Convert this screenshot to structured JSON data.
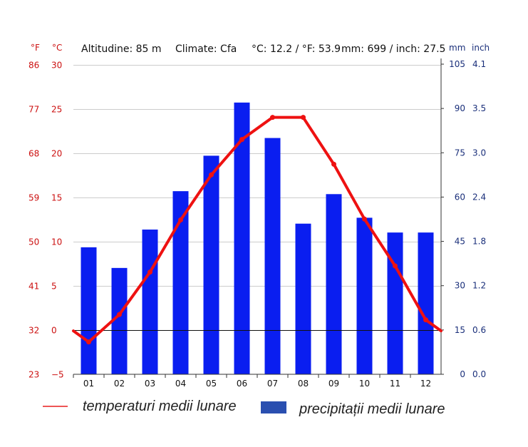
{
  "header": {
    "unit_f": "°F",
    "unit_c": "°C",
    "altitude": "Altitudine: 85 m",
    "climate": "Climate: Cfa",
    "temp_avg": "°C: 12.2 / °F: 53.9",
    "precip_total": "mm: 699 / inch: 27.5",
    "unit_mm": "mm",
    "unit_inch": "inch"
  },
  "legend": {
    "temp_label": "temperaturi medii lunare",
    "precip_label": "precipitații medii lunare"
  },
  "colors": {
    "temperature_line": "#ee1111",
    "precip_bar": "#0a1ef0",
    "legend_line": "#ee5555",
    "legend_bar": "#2a4fb0",
    "axis_red": "#cc1111",
    "axis_blue": "#1a2f7a"
  },
  "chart_data": {
    "type": "bar",
    "categories": [
      "01",
      "02",
      "03",
      "04",
      "05",
      "06",
      "07",
      "08",
      "09",
      "10",
      "11",
      "12"
    ],
    "series": [
      {
        "name": "precipitații medii lunare",
        "kind": "bar",
        "axis": "right-mm",
        "values": [
          43,
          36,
          49,
          62,
          74,
          92,
          80,
          51,
          61,
          53,
          48,
          48
        ]
      },
      {
        "name": "temperaturi medii lunare",
        "kind": "line",
        "axis": "left-celsius",
        "values": [
          -1.3,
          1.8,
          6.6,
          12.5,
          17.6,
          21.6,
          24.1,
          24.1,
          18.8,
          12.6,
          7.3,
          1.2
        ]
      }
    ],
    "axes": {
      "left_celsius": {
        "ticks": [
          "30",
          "25",
          "20",
          "15",
          "10",
          "5",
          "0",
          "−5"
        ],
        "range": [
          -5,
          30
        ]
      },
      "left_fahrenheit": {
        "ticks": [
          "86",
          "77",
          "68",
          "59",
          "50",
          "41",
          "32",
          "23"
        ]
      },
      "right_mm": {
        "ticks": [
          "105",
          "90",
          "75",
          "60",
          "45",
          "30",
          "15",
          "0"
        ],
        "range": [
          0,
          105
        ]
      },
      "right_inch": {
        "ticks": [
          "4.1",
          "3.5",
          "3.0",
          "2.4",
          "1.8",
          "1.2",
          "0.6",
          "0.0"
        ]
      }
    },
    "grid": "horizontal"
  }
}
